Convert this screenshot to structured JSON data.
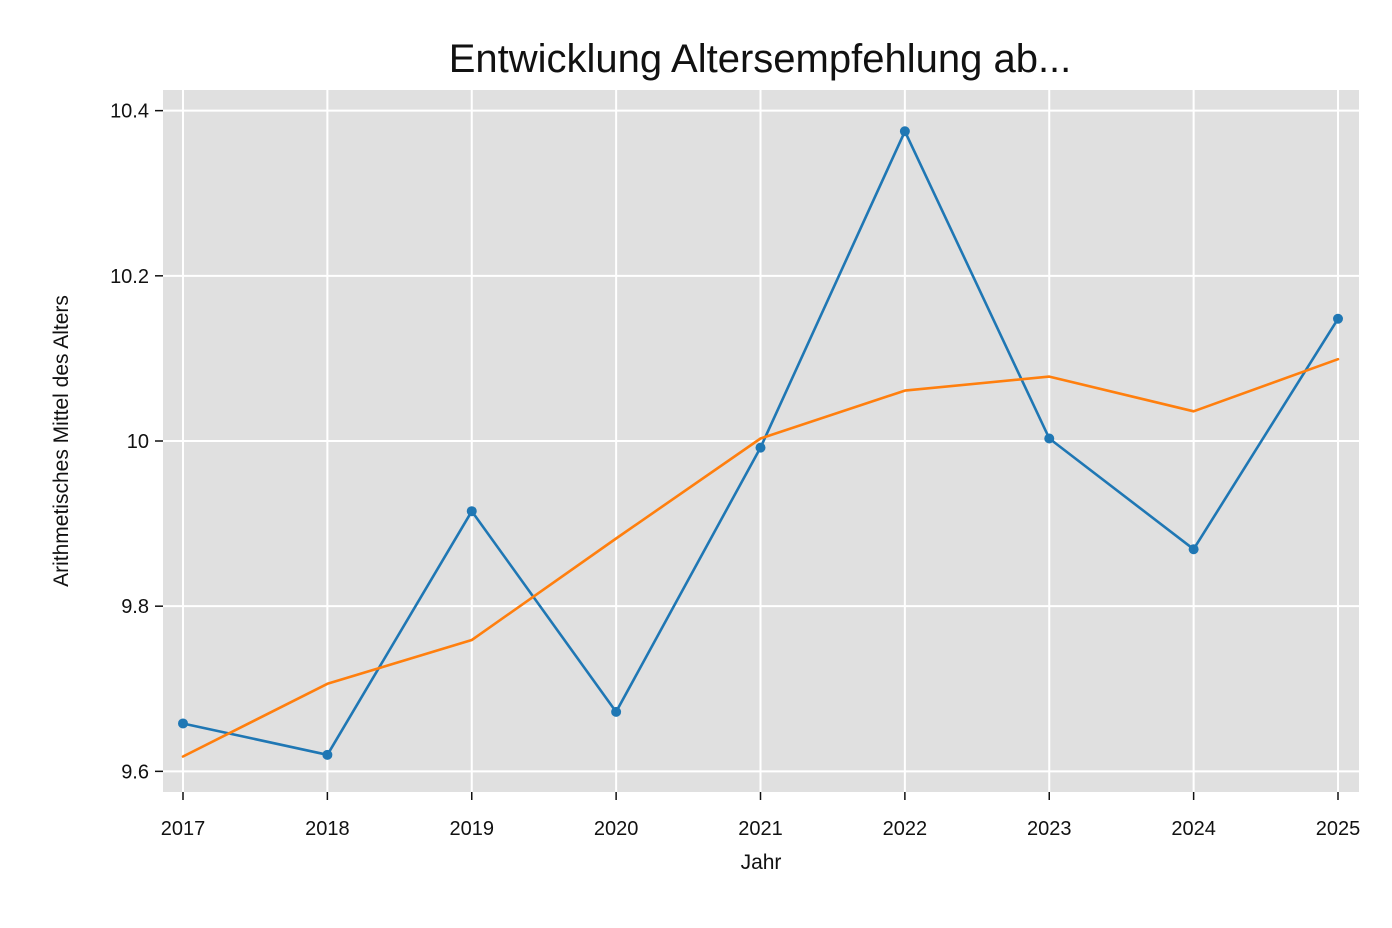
{
  "chart_data": {
    "type": "line",
    "title": "Entwicklung Altersempfehlung ab...",
    "xlabel": "Jahr",
    "ylabel": "Arithmetisches Mittel des Alters",
    "x": [
      2017,
      2018,
      2019,
      2020,
      2021,
      2022,
      2023,
      2024,
      2025
    ],
    "x_tick_labels": [
      "2017",
      "2018",
      "2019",
      "2020",
      "2021",
      "2022",
      "2023",
      "2024",
      "2025"
    ],
    "y_ticks": [
      9.6,
      9.8,
      10.0,
      10.2,
      10.4
    ],
    "y_tick_labels": [
      "9.6",
      "9.8",
      "10",
      "10.2",
      "10.4"
    ],
    "ylim": [
      9.575,
      10.425
    ],
    "grid": true,
    "legend": false,
    "series": [
      {
        "color": "#1f77b4",
        "markers": true,
        "values": [
          9.658,
          9.62,
          9.915,
          9.672,
          9.992,
          10.375,
          10.003,
          9.869,
          10.148
        ]
      },
      {
        "color": "#ff7f0e",
        "markers": false,
        "values": [
          9.618,
          9.706,
          9.759,
          9.882,
          10.003,
          10.061,
          10.078,
          10.036,
          10.099
        ]
      }
    ],
    "plot_background": "#e0e0e0",
    "grid_color": "#ffffff"
  }
}
